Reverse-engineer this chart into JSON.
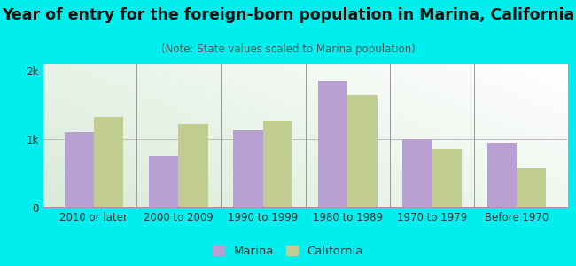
{
  "title": "Year of entry for the foreign-born population in Marina, California",
  "subtitle": "(Note: State values scaled to Marina population)",
  "categories": [
    "2010 or later",
    "2000 to 2009",
    "1990 to 1999",
    "1980 to 1989",
    "1970 to 1979",
    "Before 1970"
  ],
  "marina_values": [
    1100,
    750,
    1125,
    1850,
    1000,
    950
  ],
  "california_values": [
    1325,
    1225,
    1275,
    1650,
    850,
    575
  ],
  "marina_color": "#b8a0d0",
  "california_color": "#c0cc90",
  "bg_color": "#00eeee",
  "plot_bg_left": "#d8edd8",
  "plot_bg_right": "#f0f8f0",
  "ylim": [
    0,
    2100
  ],
  "ytick_labels": [
    "0",
    "1k",
    "2k"
  ],
  "bar_width": 0.35,
  "title_fontsize": 12.5,
  "subtitle_fontsize": 8.5,
  "legend_fontsize": 9.5,
  "tick_fontsize": 8.5
}
